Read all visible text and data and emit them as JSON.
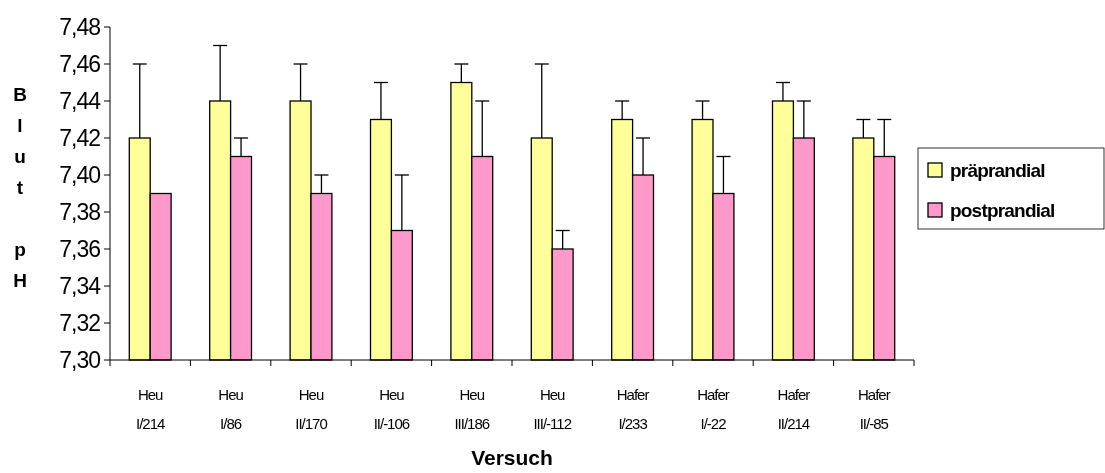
{
  "chart_data": {
    "type": "bar",
    "xlabel": "Versuch",
    "ylabel": "Blut pH",
    "categories": [
      "Heu I/214",
      "Heu I/86",
      "Heu II/170",
      "Heu II/-106",
      "Heu III/186",
      "Heu III/-112",
      "Hafer I/233",
      "Hafer I/-22",
      "Hafer II/214",
      "Hafer II/-85"
    ],
    "series": [
      {
        "name": "präprandial",
        "color": "#ffff99",
        "values": [
          7.42,
          7.44,
          7.44,
          7.43,
          7.45,
          7.42,
          7.43,
          7.43,
          7.44,
          7.42
        ],
        "errors": [
          [
            7.42,
            7.46
          ],
          [
            7.44,
            7.47
          ],
          [
            7.44,
            7.46
          ],
          [
            7.43,
            7.45
          ],
          [
            7.45,
            7.46
          ],
          [
            7.42,
            7.46
          ],
          [
            7.43,
            7.44
          ],
          [
            7.43,
            7.44
          ],
          [
            7.44,
            7.45
          ],
          [
            7.42,
            7.43
          ]
        ]
      },
      {
        "name": "postprandial",
        "color": "#ff99cc",
        "values": [
          7.39,
          7.41,
          7.39,
          7.37,
          7.41,
          7.36,
          7.4,
          7.39,
          7.42,
          7.41
        ],
        "errors": [
          null,
          [
            7.41,
            7.42
          ],
          [
            7.39,
            7.4
          ],
          [
            7.37,
            7.4
          ],
          [
            7.41,
            7.44
          ],
          [
            7.36,
            7.37
          ],
          [
            7.4,
            7.42
          ],
          [
            7.39,
            7.41
          ],
          [
            7.42,
            7.44
          ],
          [
            7.41,
            7.43
          ]
        ]
      }
    ],
    "ylim": [
      7.3,
      7.48
    ],
    "yticks": [
      {
        "value": 7.3,
        "label": "7,30"
      },
      {
        "value": 7.32,
        "label": "7,32"
      },
      {
        "value": 7.34,
        "label": "7,34"
      },
      {
        "value": 7.36,
        "label": "7,36"
      },
      {
        "value": 7.38,
        "label": "7,38"
      },
      {
        "value": 7.4,
        "label": "7,40"
      },
      {
        "value": 7.42,
        "label": "7,42"
      },
      {
        "value": 7.44,
        "label": "7,44"
      },
      {
        "value": 7.46,
        "label": "7,46"
      },
      {
        "value": 7.48,
        "label": "7,48"
      }
    ],
    "legend": "right",
    "grid": false
  }
}
